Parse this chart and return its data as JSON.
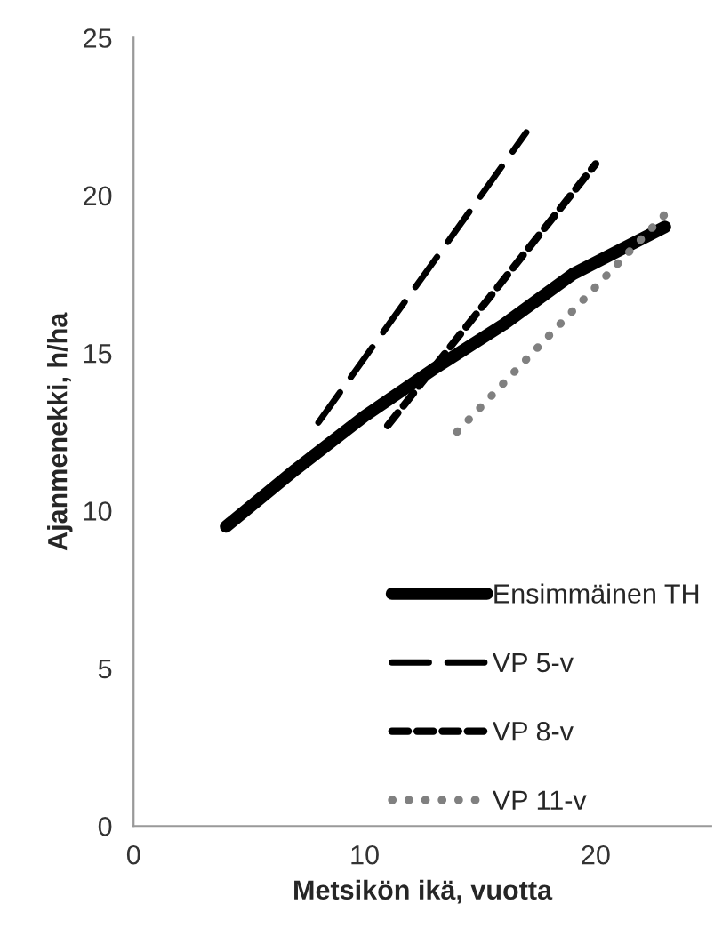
{
  "chart_data": {
    "type": "line",
    "xlabel": "Metsikön ikä, vuotta",
    "ylabel": "Ajanmenekki, h/ha",
    "xlim": [
      0,
      25
    ],
    "xticks": [
      0,
      10,
      20
    ],
    "ylim": [
      0,
      25
    ],
    "yticks": [
      0,
      5,
      10,
      15,
      20,
      25
    ],
    "grid": false,
    "legend": "bottom right",
    "series": [
      {
        "name": "Ensimmäinen TH",
        "color": "#000000",
        "line_style": "solid",
        "x": [
          4,
          7,
          10,
          13,
          16,
          19,
          23
        ],
        "values": [
          9.5,
          11.3,
          13.0,
          14.5,
          15.9,
          17.5,
          19.0
        ]
      },
      {
        "name": "VP 5-v",
        "color": "#000000",
        "line_style": "longdash",
        "x": [
          8,
          17
        ],
        "values": [
          12.8,
          22.0
        ]
      },
      {
        "name": "VP 8-v",
        "color": "#000000",
        "line_style": "dashed",
        "x": [
          11,
          20
        ],
        "values": [
          12.7,
          21.0
        ]
      },
      {
        "name": "VP 11-v",
        "color": "#808080",
        "line_style": "dotted",
        "x": [
          14,
          23
        ],
        "values": [
          12.5,
          19.4
        ]
      }
    ]
  }
}
